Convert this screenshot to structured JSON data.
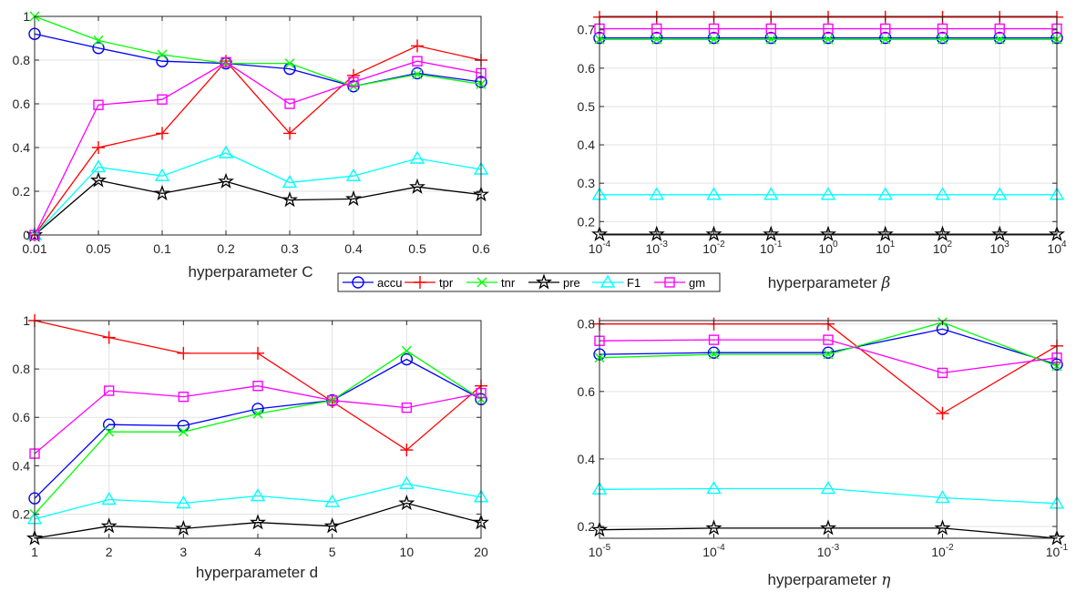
{
  "legend": [
    "accu",
    "tpr",
    "tnr",
    "pre",
    "F1",
    "gm"
  ],
  "colors": {
    "accu": "#0000ff",
    "tpr": "#ff0000",
    "tnr": "#00ff00",
    "pre": "#000000",
    "F1": "#00ffff",
    "gm": "#ff00ff",
    "grid": "#e2e2e2",
    "axis": "#262626"
  },
  "markers": {
    "accu": "circle",
    "tpr": "plus",
    "tnr": "cross",
    "pre": "star",
    "F1": "triangle",
    "gm": "square"
  },
  "chart_data": [
    {
      "id": "C",
      "type": "line",
      "xlabel": "hyperparameter C",
      "categories": [
        "0.01",
        "0.05",
        "0.1",
        "0.2",
        "0.3",
        "0.4",
        "0.5",
        "0.6"
      ],
      "yticks": [
        "0",
        "0.2",
        "0.4",
        "0.6",
        "0.8",
        "1"
      ],
      "ytick_values": [
        0,
        0.2,
        0.4,
        0.6,
        0.8,
        1
      ],
      "ylim": [
        0,
        1
      ],
      "grid": true,
      "series": [
        {
          "name": "accu",
          "values": [
            0.92,
            0.855,
            0.795,
            0.785,
            0.76,
            0.68,
            0.74,
            0.7
          ]
        },
        {
          "name": "tpr",
          "values": [
            0.0,
            0.4,
            0.465,
            0.795,
            0.465,
            0.73,
            0.865,
            0.8
          ]
        },
        {
          "name": "tnr",
          "values": [
            1.0,
            0.89,
            0.825,
            0.785,
            0.785,
            0.68,
            0.735,
            0.69
          ]
        },
        {
          "name": "pre",
          "values": [
            0.0,
            0.25,
            0.19,
            0.245,
            0.16,
            0.165,
            0.22,
            0.185
          ]
        },
        {
          "name": "F1",
          "values": [
            0.0,
            0.31,
            0.27,
            0.375,
            0.24,
            0.27,
            0.35,
            0.3
          ]
        },
        {
          "name": "gm",
          "values": [
            0.0,
            0.595,
            0.62,
            0.79,
            0.6,
            0.7,
            0.795,
            0.74
          ]
        }
      ]
    },
    {
      "id": "beta",
      "type": "line",
      "xlabel_text": "hyperparameter ",
      "xlabel_symbol": "β",
      "categories": [
        "10",
        "10",
        "10",
        "10",
        "10",
        "10",
        "10",
        "10",
        "10"
      ],
      "category_exponents": [
        "-4",
        "-3",
        "-2",
        "-1",
        "0",
        "1",
        "2",
        "3",
        "4"
      ],
      "yticks": [
        "0.2",
        "0.3",
        "0.4",
        "0.5",
        "0.6",
        "0.7"
      ],
      "ytick_values": [
        0.2,
        0.3,
        0.4,
        0.5,
        0.6,
        0.7
      ],
      "ylim": [
        0.165,
        0.735
      ],
      "grid": true,
      "series": [
        {
          "name": "accu",
          "values": [
            0.679,
            0.679,
            0.679,
            0.679,
            0.679,
            0.679,
            0.679,
            0.679,
            0.679
          ]
        },
        {
          "name": "tpr",
          "values": [
            0.733,
            0.733,
            0.733,
            0.733,
            0.733,
            0.733,
            0.733,
            0.733,
            0.733
          ]
        },
        {
          "name": "tnr",
          "values": [
            0.675,
            0.675,
            0.675,
            0.675,
            0.675,
            0.675,
            0.675,
            0.675,
            0.675
          ]
        },
        {
          "name": "pre",
          "values": [
            0.167,
            0.167,
            0.167,
            0.167,
            0.167,
            0.167,
            0.167,
            0.167,
            0.167
          ]
        },
        {
          "name": "F1",
          "values": [
            0.27,
            0.27,
            0.27,
            0.27,
            0.27,
            0.27,
            0.27,
            0.27,
            0.27
          ]
        },
        {
          "name": "gm",
          "values": [
            0.703,
            0.703,
            0.703,
            0.703,
            0.703,
            0.703,
            0.703,
            0.703,
            0.703
          ]
        }
      ]
    },
    {
      "id": "d",
      "type": "line",
      "xlabel": "hyperparameter d",
      "categories": [
        "1",
        "2",
        "3",
        "4",
        "5",
        "10",
        "20"
      ],
      "yticks": [
        "0.2",
        "0.4",
        "0.6",
        "0.8",
        "1"
      ],
      "ytick_values": [
        0.2,
        0.4,
        0.6,
        0.8,
        1
      ],
      "ylim": [
        0.1,
        1
      ],
      "grid": true,
      "series": [
        {
          "name": "accu",
          "values": [
            0.265,
            0.57,
            0.565,
            0.635,
            0.67,
            0.84,
            0.675
          ]
        },
        {
          "name": "tpr",
          "values": [
            1.0,
            0.93,
            0.865,
            0.865,
            0.665,
            0.465,
            0.73
          ]
        },
        {
          "name": "tnr",
          "values": [
            0.2,
            0.54,
            0.54,
            0.615,
            0.67,
            0.875,
            0.675
          ]
        },
        {
          "name": "pre",
          "values": [
            0.1,
            0.15,
            0.14,
            0.165,
            0.15,
            0.245,
            0.165
          ]
        },
        {
          "name": "F1",
          "values": [
            0.18,
            0.26,
            0.245,
            0.275,
            0.25,
            0.325,
            0.27
          ]
        },
        {
          "name": "gm",
          "values": [
            0.45,
            0.71,
            0.685,
            0.73,
            0.67,
            0.64,
            0.7
          ]
        }
      ]
    },
    {
      "id": "eta",
      "type": "line",
      "xlabel_text": "hyperparameter ",
      "xlabel_symbol": "η",
      "categories": [
        "10",
        "10",
        "10",
        "10",
        "10"
      ],
      "category_exponents": [
        "-5",
        "-4",
        "-3",
        "-2",
        "-1"
      ],
      "yticks": [
        "0.2",
        "0.4",
        "0.6",
        "0.8"
      ],
      "ytick_values": [
        0.2,
        0.4,
        0.6,
        0.8
      ],
      "ylim": [
        0.165,
        0.81
      ],
      "grid": true,
      "series": [
        {
          "name": "accu",
          "values": [
            0.71,
            0.715,
            0.715,
            0.785,
            0.68
          ]
        },
        {
          "name": "tpr",
          "values": [
            0.8,
            0.8,
            0.8,
            0.535,
            0.735
          ]
        },
        {
          "name": "tnr",
          "values": [
            0.7,
            0.71,
            0.71,
            0.805,
            0.675
          ]
        },
        {
          "name": "pre",
          "values": [
            0.19,
            0.195,
            0.195,
            0.195,
            0.165
          ]
        },
        {
          "name": "F1",
          "values": [
            0.31,
            0.312,
            0.312,
            0.285,
            0.268
          ]
        },
        {
          "name": "gm",
          "values": [
            0.75,
            0.753,
            0.753,
            0.655,
            0.7
          ]
        }
      ]
    }
  ]
}
